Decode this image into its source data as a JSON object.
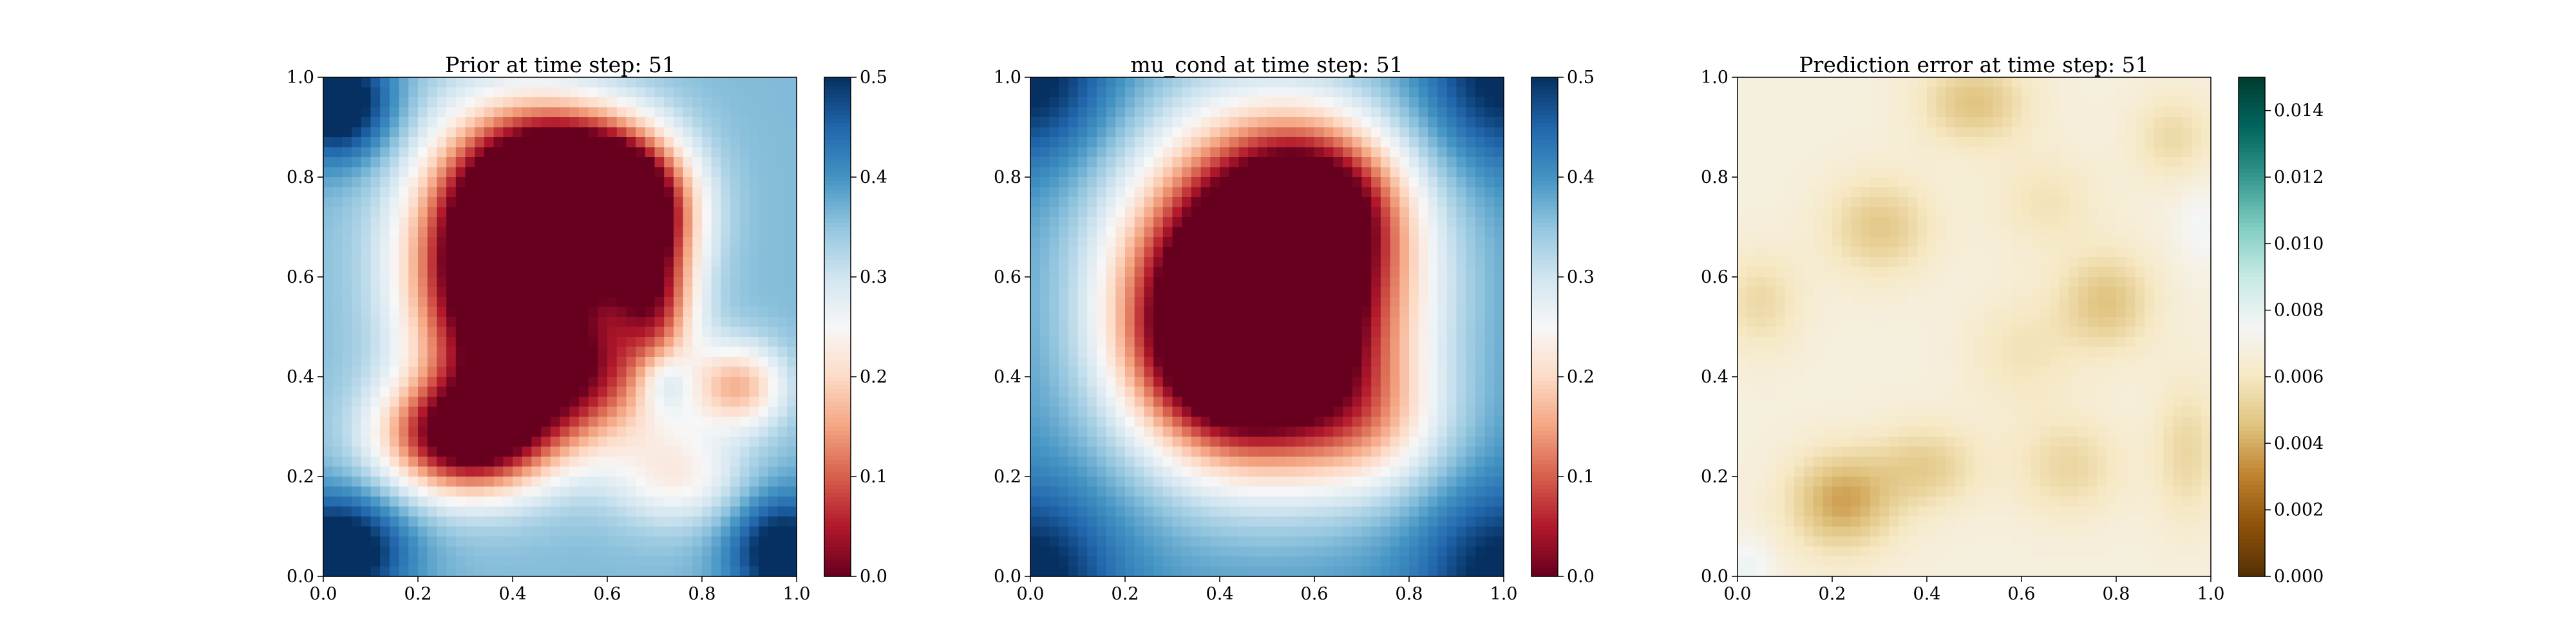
{
  "chart_data": [
    {
      "type": "heatmap",
      "title": "Prior at time step: 51",
      "xlabel": "",
      "ylabel": "",
      "xlim": [
        0.0,
        1.0
      ],
      "ylim": [
        0.0,
        1.0
      ],
      "x_ticks": [
        "0.0",
        "0.2",
        "0.4",
        "0.6",
        "0.8",
        "1.0"
      ],
      "y_ticks": [
        "0.0",
        "0.2",
        "0.4",
        "0.6",
        "0.8",
        "1.0"
      ],
      "colormap": "RdBu",
      "colorbar": {
        "min": 0.0,
        "max": 0.5,
        "ticks": [
          "0.0",
          "0.1",
          "0.2",
          "0.3",
          "0.4",
          "0.5"
        ]
      },
      "background": 0.36,
      "blobs": [
        {
          "x": 0.38,
          "y": 0.62,
          "sx": 0.13,
          "sy": 0.18,
          "a": -0.55
        },
        {
          "x": 0.52,
          "y": 0.78,
          "sx": 0.12,
          "sy": 0.1,
          "a": -0.45
        },
        {
          "x": 0.65,
          "y": 0.72,
          "sx": 0.09,
          "sy": 0.1,
          "a": -0.4
        },
        {
          "x": 0.3,
          "y": 0.28,
          "sx": 0.12,
          "sy": 0.08,
          "a": -0.38
        },
        {
          "x": 0.55,
          "y": 0.4,
          "sx": 0.14,
          "sy": 0.1,
          "a": -0.25
        },
        {
          "x": 0.88,
          "y": 0.38,
          "sx": 0.07,
          "sy": 0.06,
          "a": -0.18
        },
        {
          "x": 0.75,
          "y": 0.2,
          "sx": 0.1,
          "sy": 0.07,
          "a": -0.12
        },
        {
          "x": 0.7,
          "y": 0.55,
          "sx": 0.06,
          "sy": 0.08,
          "a": -0.2
        },
        {
          "x": 0.72,
          "y": 0.39,
          "sx": 0.04,
          "sy": 0.04,
          "a": 0.08
        },
        {
          "x": 0.03,
          "y": 0.95,
          "sx": 0.08,
          "sy": 0.08,
          "a": 0.2
        },
        {
          "x": 0.03,
          "y": 0.05,
          "sx": 0.1,
          "sy": 0.08,
          "a": 0.2
        },
        {
          "x": 0.97,
          "y": 0.05,
          "sx": 0.08,
          "sy": 0.08,
          "a": 0.18
        }
      ]
    },
    {
      "type": "heatmap",
      "title": "mu_cond at time step: 51",
      "xlabel": "",
      "ylabel": "",
      "xlim": [
        0.0,
        1.0
      ],
      "ylim": [
        0.0,
        1.0
      ],
      "x_ticks": [
        "0.0",
        "0.2",
        "0.4",
        "0.6",
        "0.8",
        "1.0"
      ],
      "y_ticks": [
        "0.0",
        "0.2",
        "0.4",
        "0.6",
        "0.8",
        "1.0"
      ],
      "colormap": "RdBu",
      "colorbar": {
        "min": 0.0,
        "max": 0.5,
        "ticks": [
          "0.0",
          "0.1",
          "0.2",
          "0.3",
          "0.4",
          "0.5"
        ]
      },
      "background": 0.4,
      "blobs": [
        {
          "x": 0.5,
          "y": 0.58,
          "sx": 0.2,
          "sy": 0.22,
          "a": -0.62
        },
        {
          "x": 0.42,
          "y": 0.45,
          "sx": 0.14,
          "sy": 0.14,
          "a": -0.25
        },
        {
          "x": 0.6,
          "y": 0.75,
          "sx": 0.12,
          "sy": 0.1,
          "a": -0.2
        },
        {
          "x": 0.72,
          "y": 0.3,
          "sx": 0.12,
          "sy": 0.1,
          "a": -0.12
        },
        {
          "x": 0.0,
          "y": 0.0,
          "sx": 0.12,
          "sy": 0.12,
          "a": 0.12
        },
        {
          "x": 1.0,
          "y": 0.0,
          "sx": 0.12,
          "sy": 0.12,
          "a": 0.12
        },
        {
          "x": 0.0,
          "y": 1.0,
          "sx": 0.12,
          "sy": 0.12,
          "a": 0.12
        },
        {
          "x": 1.0,
          "y": 1.0,
          "sx": 0.12,
          "sy": 0.12,
          "a": 0.12
        }
      ]
    },
    {
      "type": "heatmap",
      "title": "Prediction error at time step: 51",
      "xlabel": "",
      "ylabel": "",
      "xlim": [
        0.0,
        1.0
      ],
      "ylim": [
        0.0,
        1.0
      ],
      "x_ticks": [
        "0.0",
        "0.2",
        "0.4",
        "0.6",
        "0.8",
        "1.0"
      ],
      "y_ticks": [
        "0.0",
        "0.2",
        "0.4",
        "0.6",
        "0.8",
        "1.0"
      ],
      "colormap": "BrBG",
      "colorbar": {
        "min": 0.0,
        "max": 0.015,
        "ticks": [
          "0.000",
          "0.002",
          "0.004",
          "0.006",
          "0.008",
          "0.010",
          "0.012",
          "0.014"
        ]
      },
      "background": 0.0068,
      "blobs": [
        {
          "x": 0.22,
          "y": 0.15,
          "sx": 0.08,
          "sy": 0.07,
          "a": -0.003
        },
        {
          "x": 0.4,
          "y": 0.22,
          "sx": 0.08,
          "sy": 0.06,
          "a": -0.0018
        },
        {
          "x": 0.3,
          "y": 0.7,
          "sx": 0.08,
          "sy": 0.07,
          "a": -0.002
        },
        {
          "x": 0.5,
          "y": 0.95,
          "sx": 0.08,
          "sy": 0.06,
          "a": -0.0022
        },
        {
          "x": 0.78,
          "y": 0.55,
          "sx": 0.07,
          "sy": 0.07,
          "a": -0.0022
        },
        {
          "x": 0.7,
          "y": 0.22,
          "sx": 0.08,
          "sy": 0.07,
          "a": -0.0015
        },
        {
          "x": 0.92,
          "y": 0.88,
          "sx": 0.06,
          "sy": 0.06,
          "a": -0.0014
        },
        {
          "x": 0.05,
          "y": 0.55,
          "sx": 0.06,
          "sy": 0.07,
          "a": -0.0014
        },
        {
          "x": 0.6,
          "y": 0.45,
          "sx": 0.08,
          "sy": 0.08,
          "a": -0.001
        },
        {
          "x": 0.65,
          "y": 0.75,
          "sx": 0.08,
          "sy": 0.07,
          "a": -0.001
        },
        {
          "x": 0.95,
          "y": 0.25,
          "sx": 0.05,
          "sy": 0.1,
          "a": -0.0015
        },
        {
          "x": 0.98,
          "y": 0.7,
          "sx": 0.04,
          "sy": 0.06,
          "a": 0.0008
        },
        {
          "x": 0.02,
          "y": 0.02,
          "sx": 0.04,
          "sy": 0.04,
          "a": 0.001
        }
      ]
    }
  ]
}
